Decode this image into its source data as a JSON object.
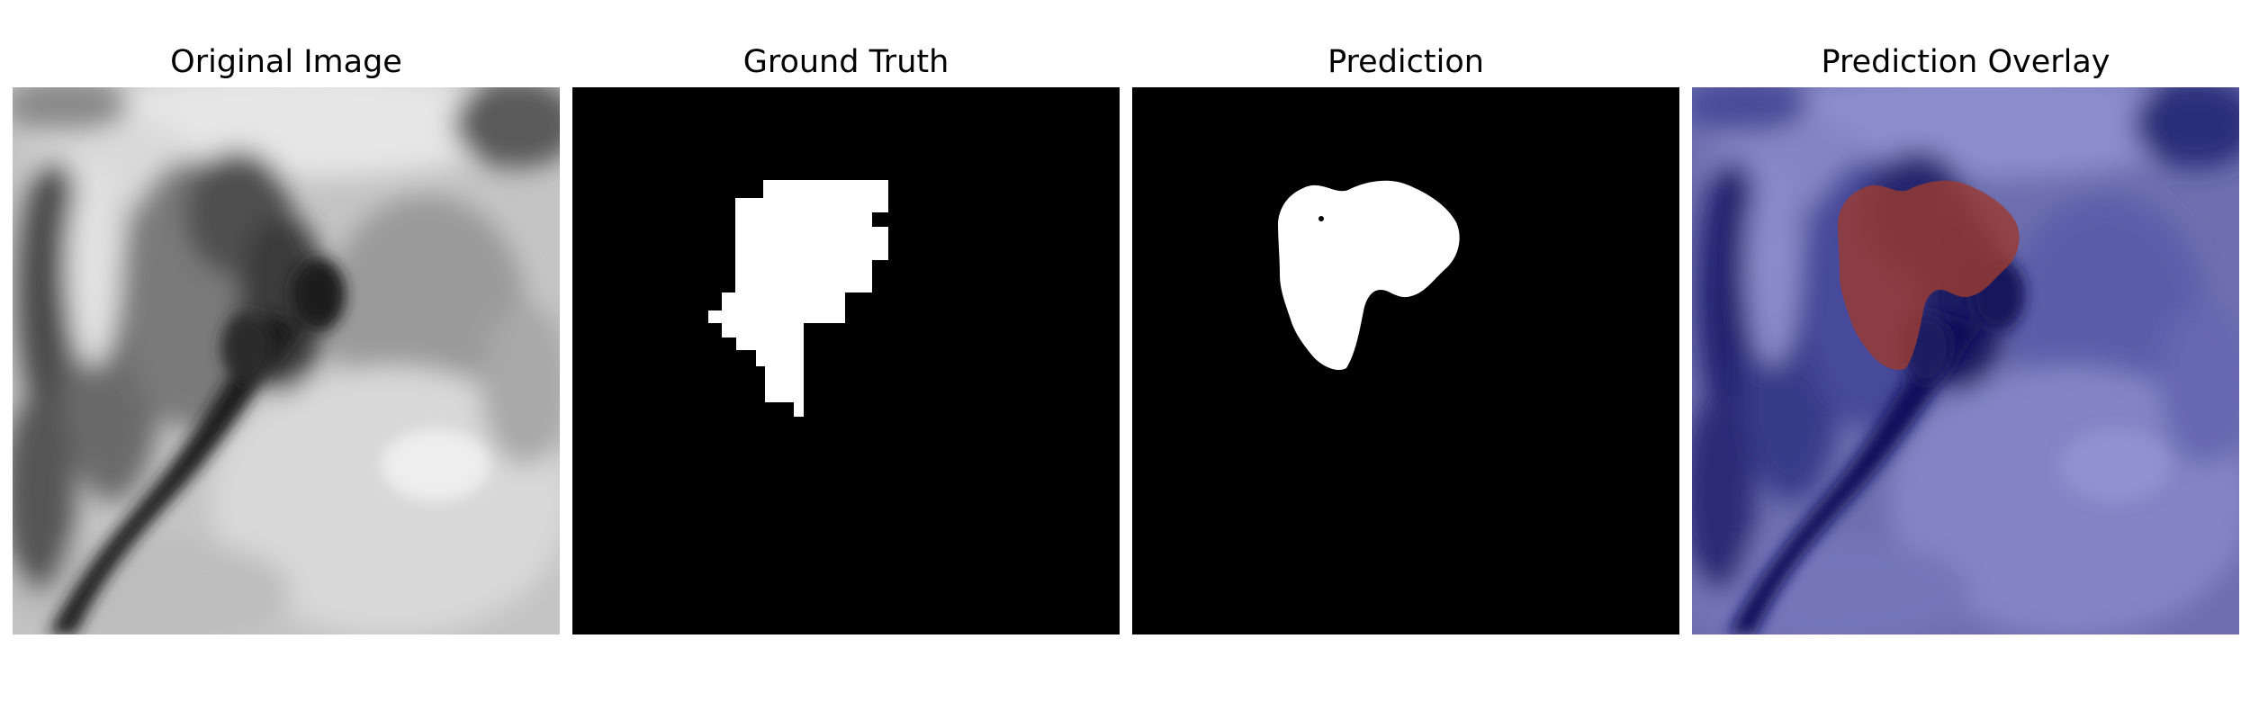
{
  "figure": {
    "panels": [
      {
        "title": "Original Image"
      },
      {
        "title": "Ground Truth"
      },
      {
        "title": "Prediction"
      },
      {
        "title": "Prediction Overlay"
      }
    ]
  }
}
